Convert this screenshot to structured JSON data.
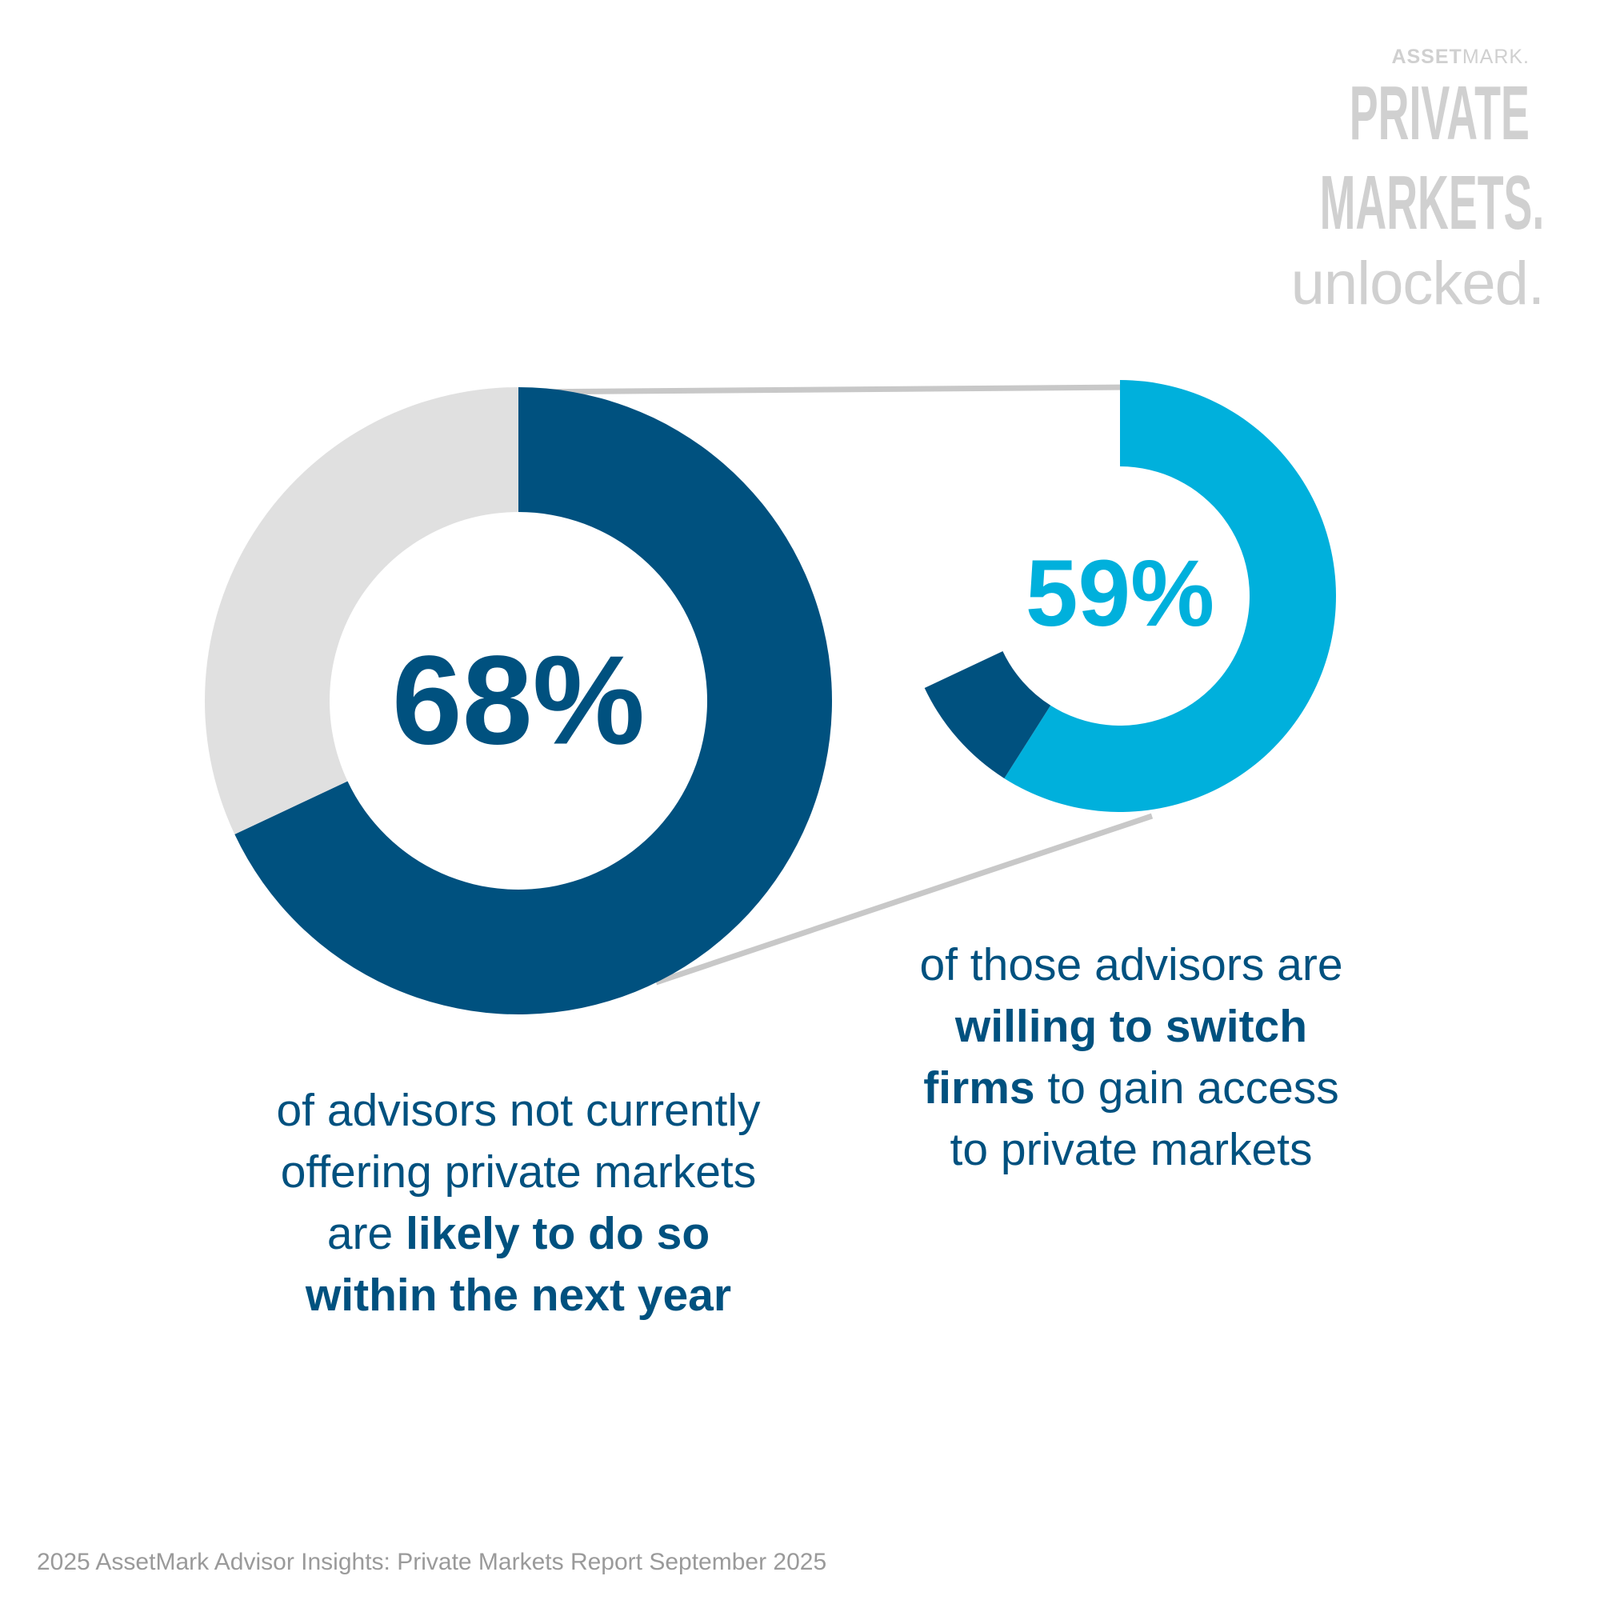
{
  "logo": {
    "brand_bold": "ASSET",
    "brand_light": "MARK.",
    "line1": "PRIVATE",
    "line2": "MARKETS.",
    "line3": "unlocked."
  },
  "colors": {
    "dark_blue": "#00517f",
    "cyan": "#00b0dc",
    "light_gray": "#e0e0e0",
    "connector": "#c8c8c8"
  },
  "chart_data": [
    {
      "type": "pie",
      "donut": true,
      "label": "68%",
      "values": [
        68,
        32
      ],
      "colors": [
        "#00517f",
        "#e0e0e0"
      ]
    },
    {
      "type": "pie",
      "donut": true,
      "label": "59%",
      "of_previous": 68,
      "values": [
        59
      ],
      "colors": [
        "#00b0dc",
        "#00517f"
      ]
    }
  ],
  "captions": {
    "left": {
      "l1": "of advisors not currently",
      "l2": "offering private markets",
      "l3_pre": "are ",
      "l3_bold": "likely to do so",
      "l4_bold": "within the next year"
    },
    "right": {
      "l1": "of those advisors are",
      "l2_bold": "willing to switch",
      "l3_bold": "firms",
      "l3_post": " to gain access",
      "l4": "to private markets"
    }
  },
  "footer": "2025 AssetMark Advisor Insights: Private Markets Report September 2025"
}
